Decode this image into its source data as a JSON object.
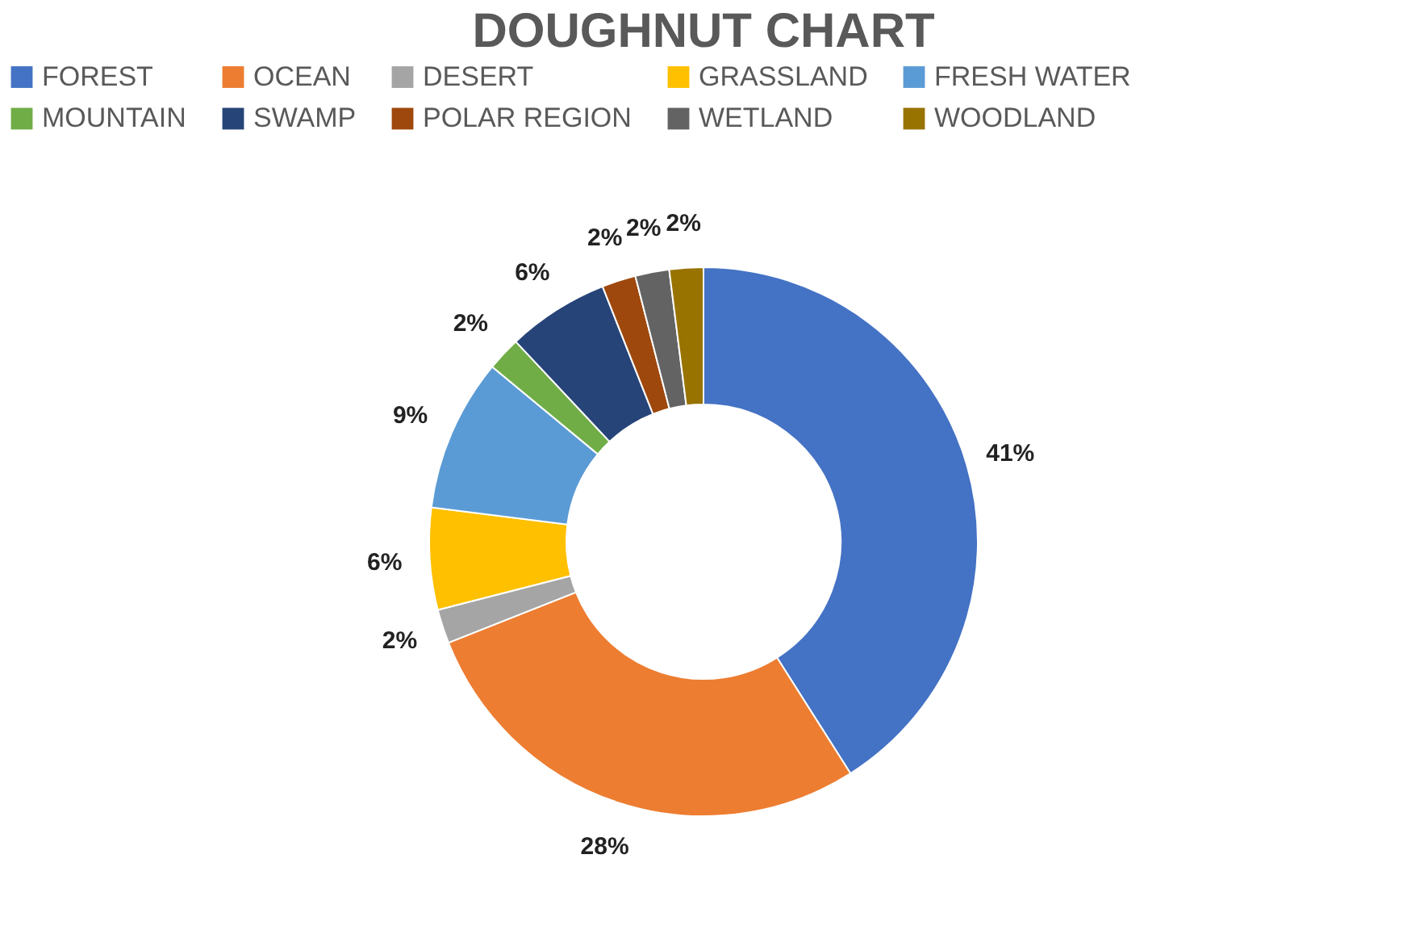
{
  "chart_data": {
    "type": "donut",
    "title": "DOUGHNUT CHART",
    "categories": [
      "FOREST",
      "OCEAN",
      "DESERT",
      "GRASSLAND",
      "FRESH WATER",
      "MOUNTAIN",
      "SWAMP",
      "POLAR REGION",
      "WETLAND",
      "WOODLAND"
    ],
    "values": [
      41,
      28,
      2,
      6,
      9,
      2,
      6,
      2,
      2,
      2
    ],
    "colors": [
      "#4472c4",
      "#ed7d31",
      "#a5a5a5",
      "#ffc000",
      "#5b9bd5",
      "#70ad47",
      "#264478",
      "#9e480e",
      "#636363",
      "#997300"
    ],
    "value_labels": [
      "41%",
      "28%",
      "2%",
      "6%",
      "9%",
      "2%",
      "6%",
      "2%",
      "2%",
      "2%"
    ],
    "legend": "top"
  }
}
